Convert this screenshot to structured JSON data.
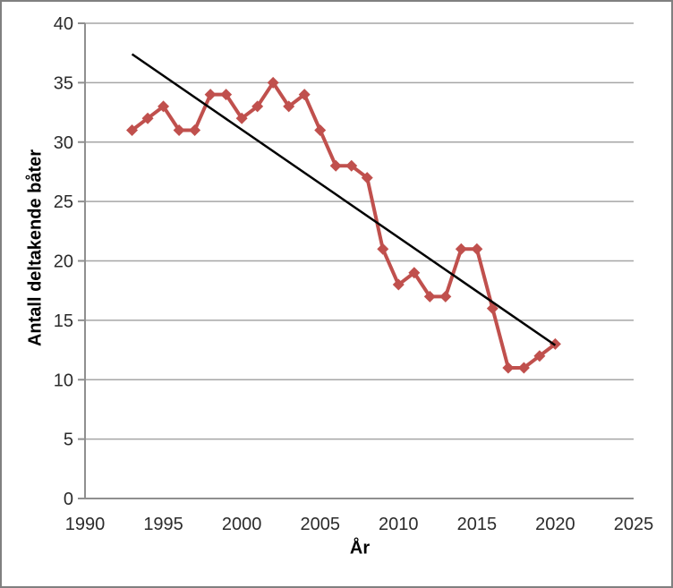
{
  "chart_data": {
    "type": "line",
    "title": "",
    "xlabel": "År",
    "ylabel": "Antall deltakende båter",
    "x": [
      1993,
      1994,
      1995,
      1996,
      1997,
      1998,
      1999,
      2000,
      2001,
      2002,
      2003,
      2004,
      2005,
      2006,
      2007,
      2008,
      2009,
      2010,
      2011,
      2012,
      2013,
      2014,
      2015,
      2016,
      2017,
      2018,
      2019,
      2020
    ],
    "series": [
      {
        "name": "Antall deltakende båter",
        "marker": "diamond",
        "color": "#C0504D",
        "values": [
          31,
          32,
          33,
          31,
          31,
          34,
          34,
          32,
          33,
          35,
          33,
          34,
          31,
          28,
          28,
          27,
          21,
          18,
          19,
          17,
          17,
          21,
          21,
          16,
          11,
          11,
          12,
          13
        ]
      }
    ],
    "trendline": {
      "type": "linear",
      "color": "#000000",
      "start": {
        "x": 1993,
        "y": 37.4
      },
      "end": {
        "x": 2020,
        "y": 12.9
      }
    },
    "xlim": [
      1990,
      2025
    ],
    "ylim": [
      0,
      40
    ],
    "x_ticks": [
      1990,
      1995,
      2000,
      2005,
      2010,
      2015,
      2020,
      2025
    ],
    "y_ticks": [
      0,
      5,
      10,
      15,
      20,
      25,
      30,
      35,
      40
    ],
    "grid": "horizontal-only",
    "legend": "none",
    "colors": {
      "gridline": "#a6a6a6",
      "axis": "#8f8f8f",
      "tick_label": "#2b2b2b",
      "frame_border": "#808080",
      "background": "#ffffff"
    }
  }
}
